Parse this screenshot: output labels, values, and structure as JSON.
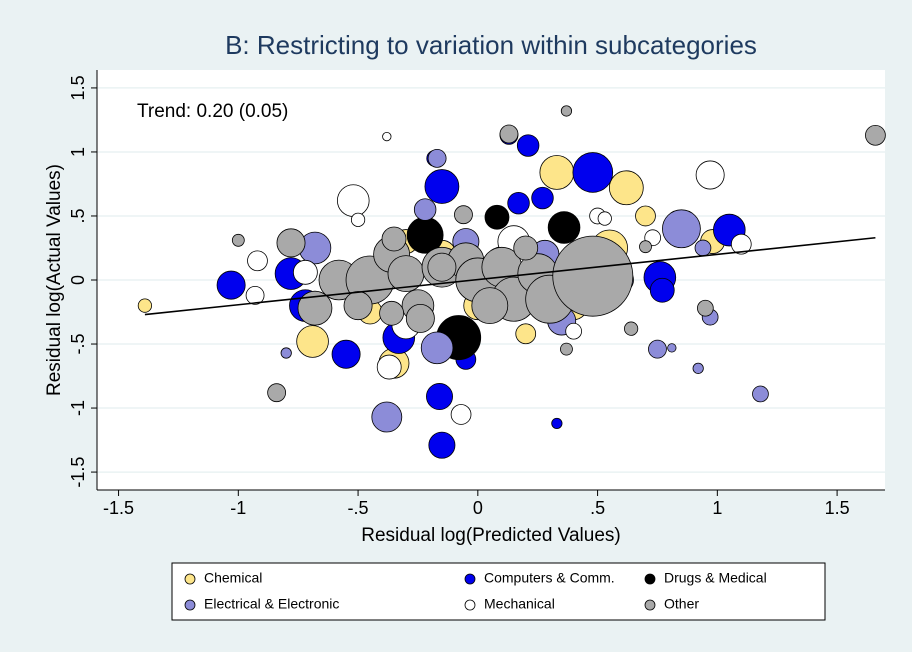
{
  "chart_data": {
    "type": "scatter",
    "title": "B: Restricting to variation within subcategories",
    "x_label": "Residual log(Predicted Values)",
    "y_label": "Residual log(Actual Values)",
    "annotation": "Trend: 0.20 (0.05)",
    "xlim": [
      -1.59,
      1.7
    ],
    "ylim": [
      -1.64,
      1.64
    ],
    "xticks": [
      -1.5,
      -1,
      {
        "value": -0.5,
        "label": "-.5"
      },
      0,
      {
        "value": 0.5,
        "label": ".5"
      },
      1,
      1.5
    ],
    "yticks": [
      -1.5,
      -1,
      {
        "value": -0.5,
        "label": "-.5"
      },
      0,
      {
        "value": 0.5,
        "label": ".5"
      },
      1,
      1.5
    ],
    "grid": true,
    "legend": "bottom",
    "trend_line": {
      "color": "#000000",
      "x": [
        -1.39,
        1.66
      ],
      "y": [
        -0.27,
        0.33
      ]
    },
    "series": [
      {
        "name": "Chemical",
        "color": "#fde58a",
        "x": [
          -1.39,
          -0.69,
          0.62,
          0.33,
          0.98,
          -0.35,
          0.0,
          -0.15,
          0.55,
          -0.45,
          0.7,
          0.2,
          -0.3,
          0.4
        ],
        "y": [
          -0.2,
          -0.48,
          0.72,
          0.84,
          0.3,
          -0.65,
          -0.2,
          0.2,
          0.25,
          -0.25,
          0.5,
          -0.42,
          0.3,
          -0.2
        ],
        "sizes": [
          5,
          28,
          32,
          32,
          16,
          25,
          22,
          22,
          36,
          16,
          11,
          11,
          16,
          22
        ]
      },
      {
        "name": "Computers & Comm.",
        "color": "#0000ee",
        "x": [
          -1.03,
          -0.78,
          -0.72,
          -0.55,
          -0.15,
          -0.18,
          -0.16,
          -0.15,
          0.13,
          0.21,
          0.27,
          0.17,
          0.48,
          0.33,
          0.76,
          0.77,
          1.05,
          -0.33,
          -0.05,
          0.2
        ],
        "y": [
          -0.04,
          0.05,
          -0.2,
          -0.58,
          0.73,
          0.95,
          -0.91,
          -1.29,
          1.13,
          1.05,
          0.64,
          0.6,
          0.84,
          -1.12,
          0.02,
          -0.08,
          0.39,
          -0.45,
          -0.62,
          -0.05
        ],
        "sizes": [
          22,
          28,
          28,
          22,
          32,
          7,
          19,
          19,
          9,
          13,
          13,
          13,
          44,
          3,
          28,
          16,
          28,
          28,
          11,
          28
        ]
      },
      {
        "name": "Drugs & Medical",
        "color": "#000000",
        "x": [
          -0.08,
          0.08,
          0.36,
          -0.22,
          0.1
        ],
        "y": [
          -0.45,
          0.49,
          0.41,
          0.35,
          0.15
        ],
        "sizes": [
          54,
          16,
          28,
          36,
          22
        ]
      },
      {
        "name": "Electrical & Electronic",
        "color": "#8c8cd8",
        "x": [
          -0.68,
          -0.8,
          -0.38,
          -0.22,
          -0.17,
          -0.17,
          0.35,
          0.28,
          0.6,
          0.85,
          0.94,
          0.75,
          0.92,
          0.97,
          1.18,
          0.81,
          -0.05
        ],
        "y": [
          0.25,
          -0.57,
          -1.07,
          0.55,
          0.95,
          -0.53,
          -0.32,
          0.2,
          0.0,
          0.4,
          0.25,
          -0.54,
          -0.69,
          -0.29,
          -0.89,
          -0.53,
          0.3
        ],
        "sizes": [
          28,
          3,
          25,
          13,
          9,
          28,
          22,
          22,
          16,
          40,
          7,
          9,
          3,
          7,
          7,
          2,
          19
        ]
      },
      {
        "name": "Mechanical",
        "color": "#ffffff",
        "x": [
          -0.92,
          -0.93,
          -0.72,
          -0.52,
          -0.5,
          -0.38,
          -0.37,
          -0.07,
          0.5,
          0.53,
          0.97,
          1.1,
          0.73,
          0.4,
          -0.3,
          0.15,
          -0.1
        ],
        "y": [
          0.15,
          -0.12,
          0.06,
          0.62,
          0.47,
          1.12,
          -0.68,
          -1.05,
          0.5,
          0.48,
          0.82,
          0.28,
          0.33,
          -0.4,
          -0.35,
          0.3,
          0.1
        ],
        "sizes": [
          11,
          9,
          16,
          28,
          5,
          2,
          16,
          11,
          7,
          5,
          22,
          11,
          7,
          7,
          22,
          28,
          22
        ]
      },
      {
        "name": "Other",
        "color": "#a9a9a9",
        "x": [
          -0.84,
          -1.0,
          -0.78,
          -0.68,
          -0.58,
          -0.45,
          -0.36,
          -0.3,
          -0.25,
          -0.15,
          -0.05,
          0.0,
          0.1,
          0.15,
          0.25,
          0.3,
          0.48,
          0.37,
          0.13,
          -0.15,
          0.64,
          0.95,
          1.66,
          0.37,
          -0.36,
          -0.24,
          0.05,
          0.2,
          -0.5,
          -0.35,
          0.7,
          -0.06
        ],
        "y": [
          -0.88,
          0.31,
          0.29,
          -0.22,
          0.0,
          0.0,
          0.2,
          0.05,
          -0.2,
          0.1,
          0.15,
          0.0,
          0.1,
          -0.15,
          0.05,
          -0.15,
          0.03,
          1.32,
          1.14,
          0.1,
          -0.38,
          -0.22,
          1.13,
          -0.54,
          -0.26,
          -0.3,
          -0.2,
          0.25,
          -0.2,
          0.32,
          0.26,
          0.51
        ],
        "sizes": [
          9,
          4,
          22,
          32,
          44,
          64,
          36,
          36,
          28,
          44,
          36,
          54,
          44,
          54,
          44,
          64,
          178,
          3,
          9,
          22,
          5,
          7,
          11,
          4,
          16,
          22,
          36,
          16,
          22,
          16,
          4,
          9
        ]
      }
    ]
  }
}
